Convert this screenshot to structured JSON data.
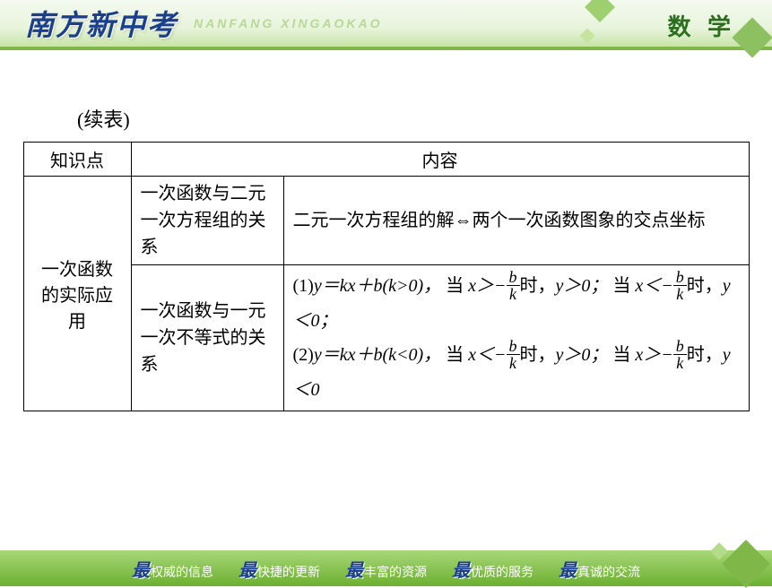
{
  "header": {
    "title": "南方新中考",
    "subtitle": "NANFANG XINGAOKAO",
    "subject": "数 学",
    "colors": {
      "title": "#1a3f8c",
      "subject": "#2a6e1e",
      "bar": "#7fb848"
    }
  },
  "continued_label": "(续表)",
  "table": {
    "head": {
      "c1": "知识点",
      "c2": "内容"
    },
    "col1": "一次函数的实际应用",
    "rows": [
      {
        "c2": "一次函数与二元一次方程组的关系",
        "c3": "二元一次方程组的解⇔两个一次函数图象的交点坐标"
      },
      {
        "c2": "一次函数与一元一次不等式的关系",
        "c3_parts": {
          "p1_prefix": "(1)",
          "eq1": "y＝kx＋b(k>0)，",
          "when": "当 ",
          "gt": "x＞−",
          "frac_b": "b",
          "frac_k": "k",
          "suf1": "时，",
          "y_gt": "y＞0；",
          "when2": "当 ",
          "lt": "x＜−",
          "suf2": "时，",
          "y_lt": "y＜0；",
          "p2_prefix": "(2)",
          "eq2": "y＝kx＋b(k<0)，",
          "y_gt2": "y＞0；",
          "y_lt2": "y＜0"
        }
      }
    ]
  },
  "footer": {
    "items": [
      {
        "b": "最",
        "t": "权威的信息"
      },
      {
        "b": "最",
        "t": "快捷的更新"
      },
      {
        "b": "最",
        "t": "丰富的资源"
      },
      {
        "b": "最",
        "t": "优质的服务"
      },
      {
        "b": "最",
        "t": "真诚的交流"
      }
    ],
    "bg_top": "#a8d878",
    "bg_bottom": "#6cb030"
  }
}
